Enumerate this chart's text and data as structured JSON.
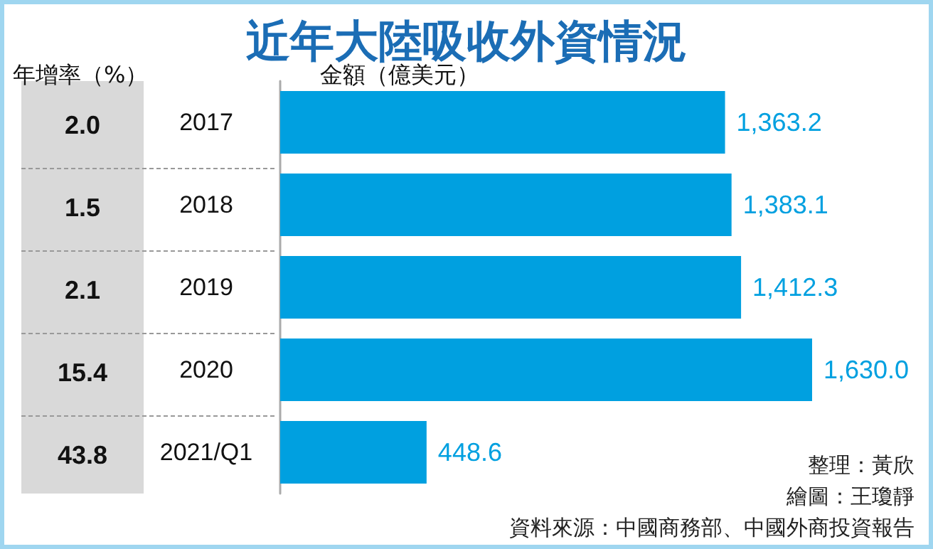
{
  "chart_data": {
    "type": "bar",
    "orientation": "horizontal",
    "title": "近年大陸吸收外資情況",
    "xlabel": "金額（億美元）",
    "categories": [
      "2017",
      "2018",
      "2019",
      "2020",
      "2021/Q1"
    ],
    "values": [
      1363.2,
      1383.1,
      1412.3,
      1630.0,
      448.6
    ],
    "color": "#00a0e0",
    "value_labels": [
      "1,363.2",
      "1,383.1",
      "1,412.3",
      "1,630.0",
      "448.6"
    ],
    "annotations": [
      "年增率（%）",
      "2.0",
      "1.5",
      "2.1",
      "15.4",
      "43.8",
      "整理：黃欣",
      "繪圖：王瓊靜",
      "資料來源：中國商務部、中國外商投資報告"
    ]
  }
}
